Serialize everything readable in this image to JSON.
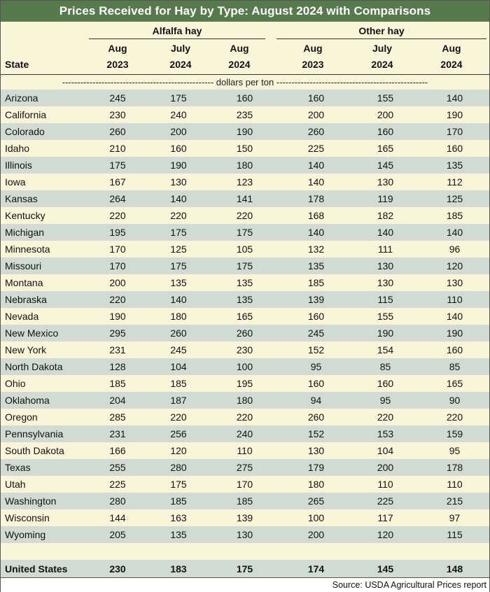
{
  "title": "Prices Received for Hay by Type: August 2024 with Comparisons",
  "groups": {
    "alfalfa": "Alfalfa hay",
    "other": "Other hay"
  },
  "columns": {
    "state": "State",
    "c1": [
      "Aug",
      "2023"
    ],
    "c2": [
      "July",
      "2024"
    ],
    "c3": [
      "Aug",
      "2024"
    ],
    "c4": [
      "Aug",
      "2023"
    ],
    "c5": [
      "July",
      "2024"
    ],
    "c6": [
      "Aug",
      "2024"
    ]
  },
  "units": "-------------------------------------------------- dollars per ton --------------------------------------------------",
  "rows": [
    [
      "Arizona",
      "245",
      "175",
      "160",
      "160",
      "155",
      "140"
    ],
    [
      "California",
      "230",
      "240",
      "235",
      "200",
      "200",
      "190"
    ],
    [
      "Colorado",
      "260",
      "200",
      "190",
      "260",
      "160",
      "170"
    ],
    [
      "Idaho",
      "210",
      "160",
      "150",
      "225",
      "165",
      "160"
    ],
    [
      "Illinois",
      "175",
      "190",
      "180",
      "140",
      "145",
      "135"
    ],
    [
      "Iowa",
      "167",
      "130",
      "123",
      "140",
      "130",
      "112"
    ],
    [
      "Kansas",
      "264",
      "140",
      "141",
      "178",
      "119",
      "125"
    ],
    [
      "Kentucky",
      "220",
      "220",
      "220",
      "168",
      "182",
      "185"
    ],
    [
      "Michigan",
      "195",
      "175",
      "175",
      "140",
      "140",
      "140"
    ],
    [
      "Minnesota",
      "170",
      "125",
      "105",
      "132",
      "111",
      "96"
    ],
    [
      "Missouri",
      "170",
      "175",
      "175",
      "135",
      "130",
      "120"
    ],
    [
      "Montana",
      "200",
      "135",
      "135",
      "185",
      "130",
      "130"
    ],
    [
      "Nebraska",
      "220",
      "140",
      "135",
      "139",
      "115",
      "110"
    ],
    [
      "Nevada",
      "190",
      "180",
      "165",
      "160",
      "155",
      "140"
    ],
    [
      "New Mexico",
      "295",
      "260",
      "260",
      "245",
      "190",
      "190"
    ],
    [
      "New York",
      "231",
      "245",
      "230",
      "152",
      "154",
      "160"
    ],
    [
      "North Dakota",
      "128",
      "104",
      "100",
      "95",
      "85",
      "85"
    ],
    [
      "Ohio",
      "185",
      "185",
      "195",
      "160",
      "160",
      "165"
    ],
    [
      "Oklahoma",
      "204",
      "187",
      "180",
      "94",
      "95",
      "90"
    ],
    [
      "Oregon",
      "285",
      "220",
      "220",
      "260",
      "220",
      "220"
    ],
    [
      "Pennsylvania",
      "231",
      "256",
      "240",
      "152",
      "153",
      "159"
    ],
    [
      "South Dakota",
      "166",
      "120",
      "110",
      "130",
      "104",
      "95"
    ],
    [
      "Texas",
      "255",
      "280",
      "275",
      "179",
      "200",
      "178"
    ],
    [
      "Utah",
      "225",
      "175",
      "170",
      "180",
      "110",
      "110"
    ],
    [
      "Washington",
      "280",
      "185",
      "185",
      "265",
      "225",
      "215"
    ],
    [
      "Wisconsin",
      "144",
      "163",
      "139",
      "100",
      "117",
      "97"
    ],
    [
      "Wyoming",
      "205",
      "135",
      "130",
      "200",
      "120",
      "115"
    ]
  ],
  "total": [
    "United States",
    "230",
    "183",
    "175",
    "174",
    "145",
    "148"
  ],
  "source": "Source: USDA Agricultural Prices report",
  "colors": {
    "title_bg": "#567a4c",
    "band_green": "#d0dcd3",
    "band_cream": "#f8f5d9"
  }
}
